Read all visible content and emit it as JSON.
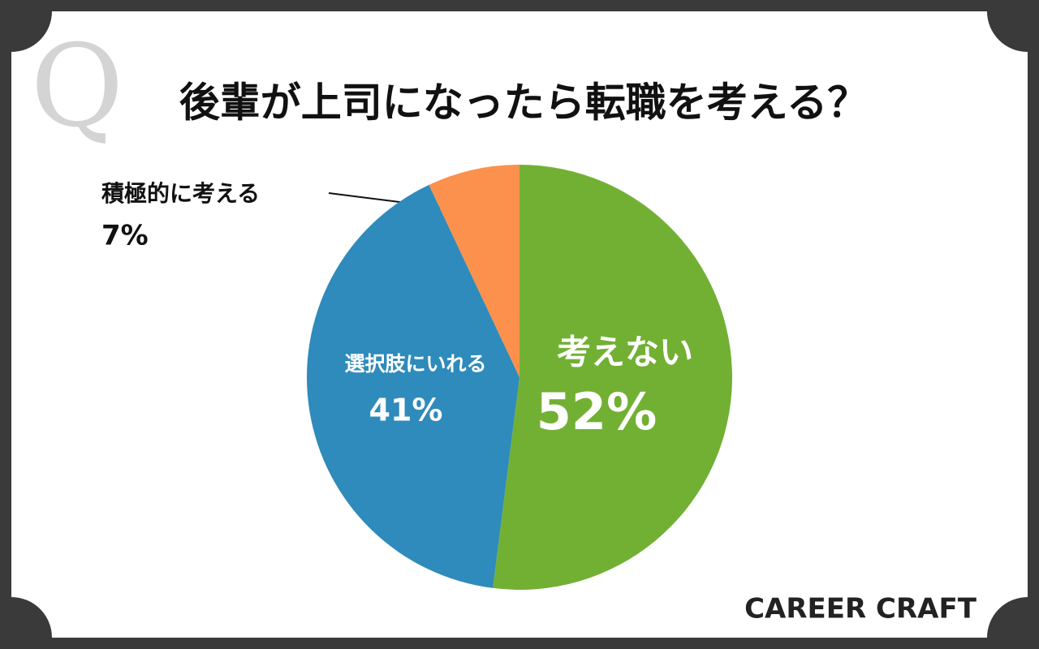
{
  "chart_data": {
    "type": "pie",
    "title": "後輩が上司になったら転職を考える？",
    "marker": "Q",
    "brand": "CAREER CRAFT",
    "categories": [
      "考えない",
      "選択肢にいれる",
      "積極的に考える"
    ],
    "values": [
      52,
      41,
      7
    ],
    "value_labels": [
      "52%",
      "41%",
      "7%"
    ],
    "colors": [
      "#72b034",
      "#2e8bbb",
      "#fb914c"
    ]
  }
}
